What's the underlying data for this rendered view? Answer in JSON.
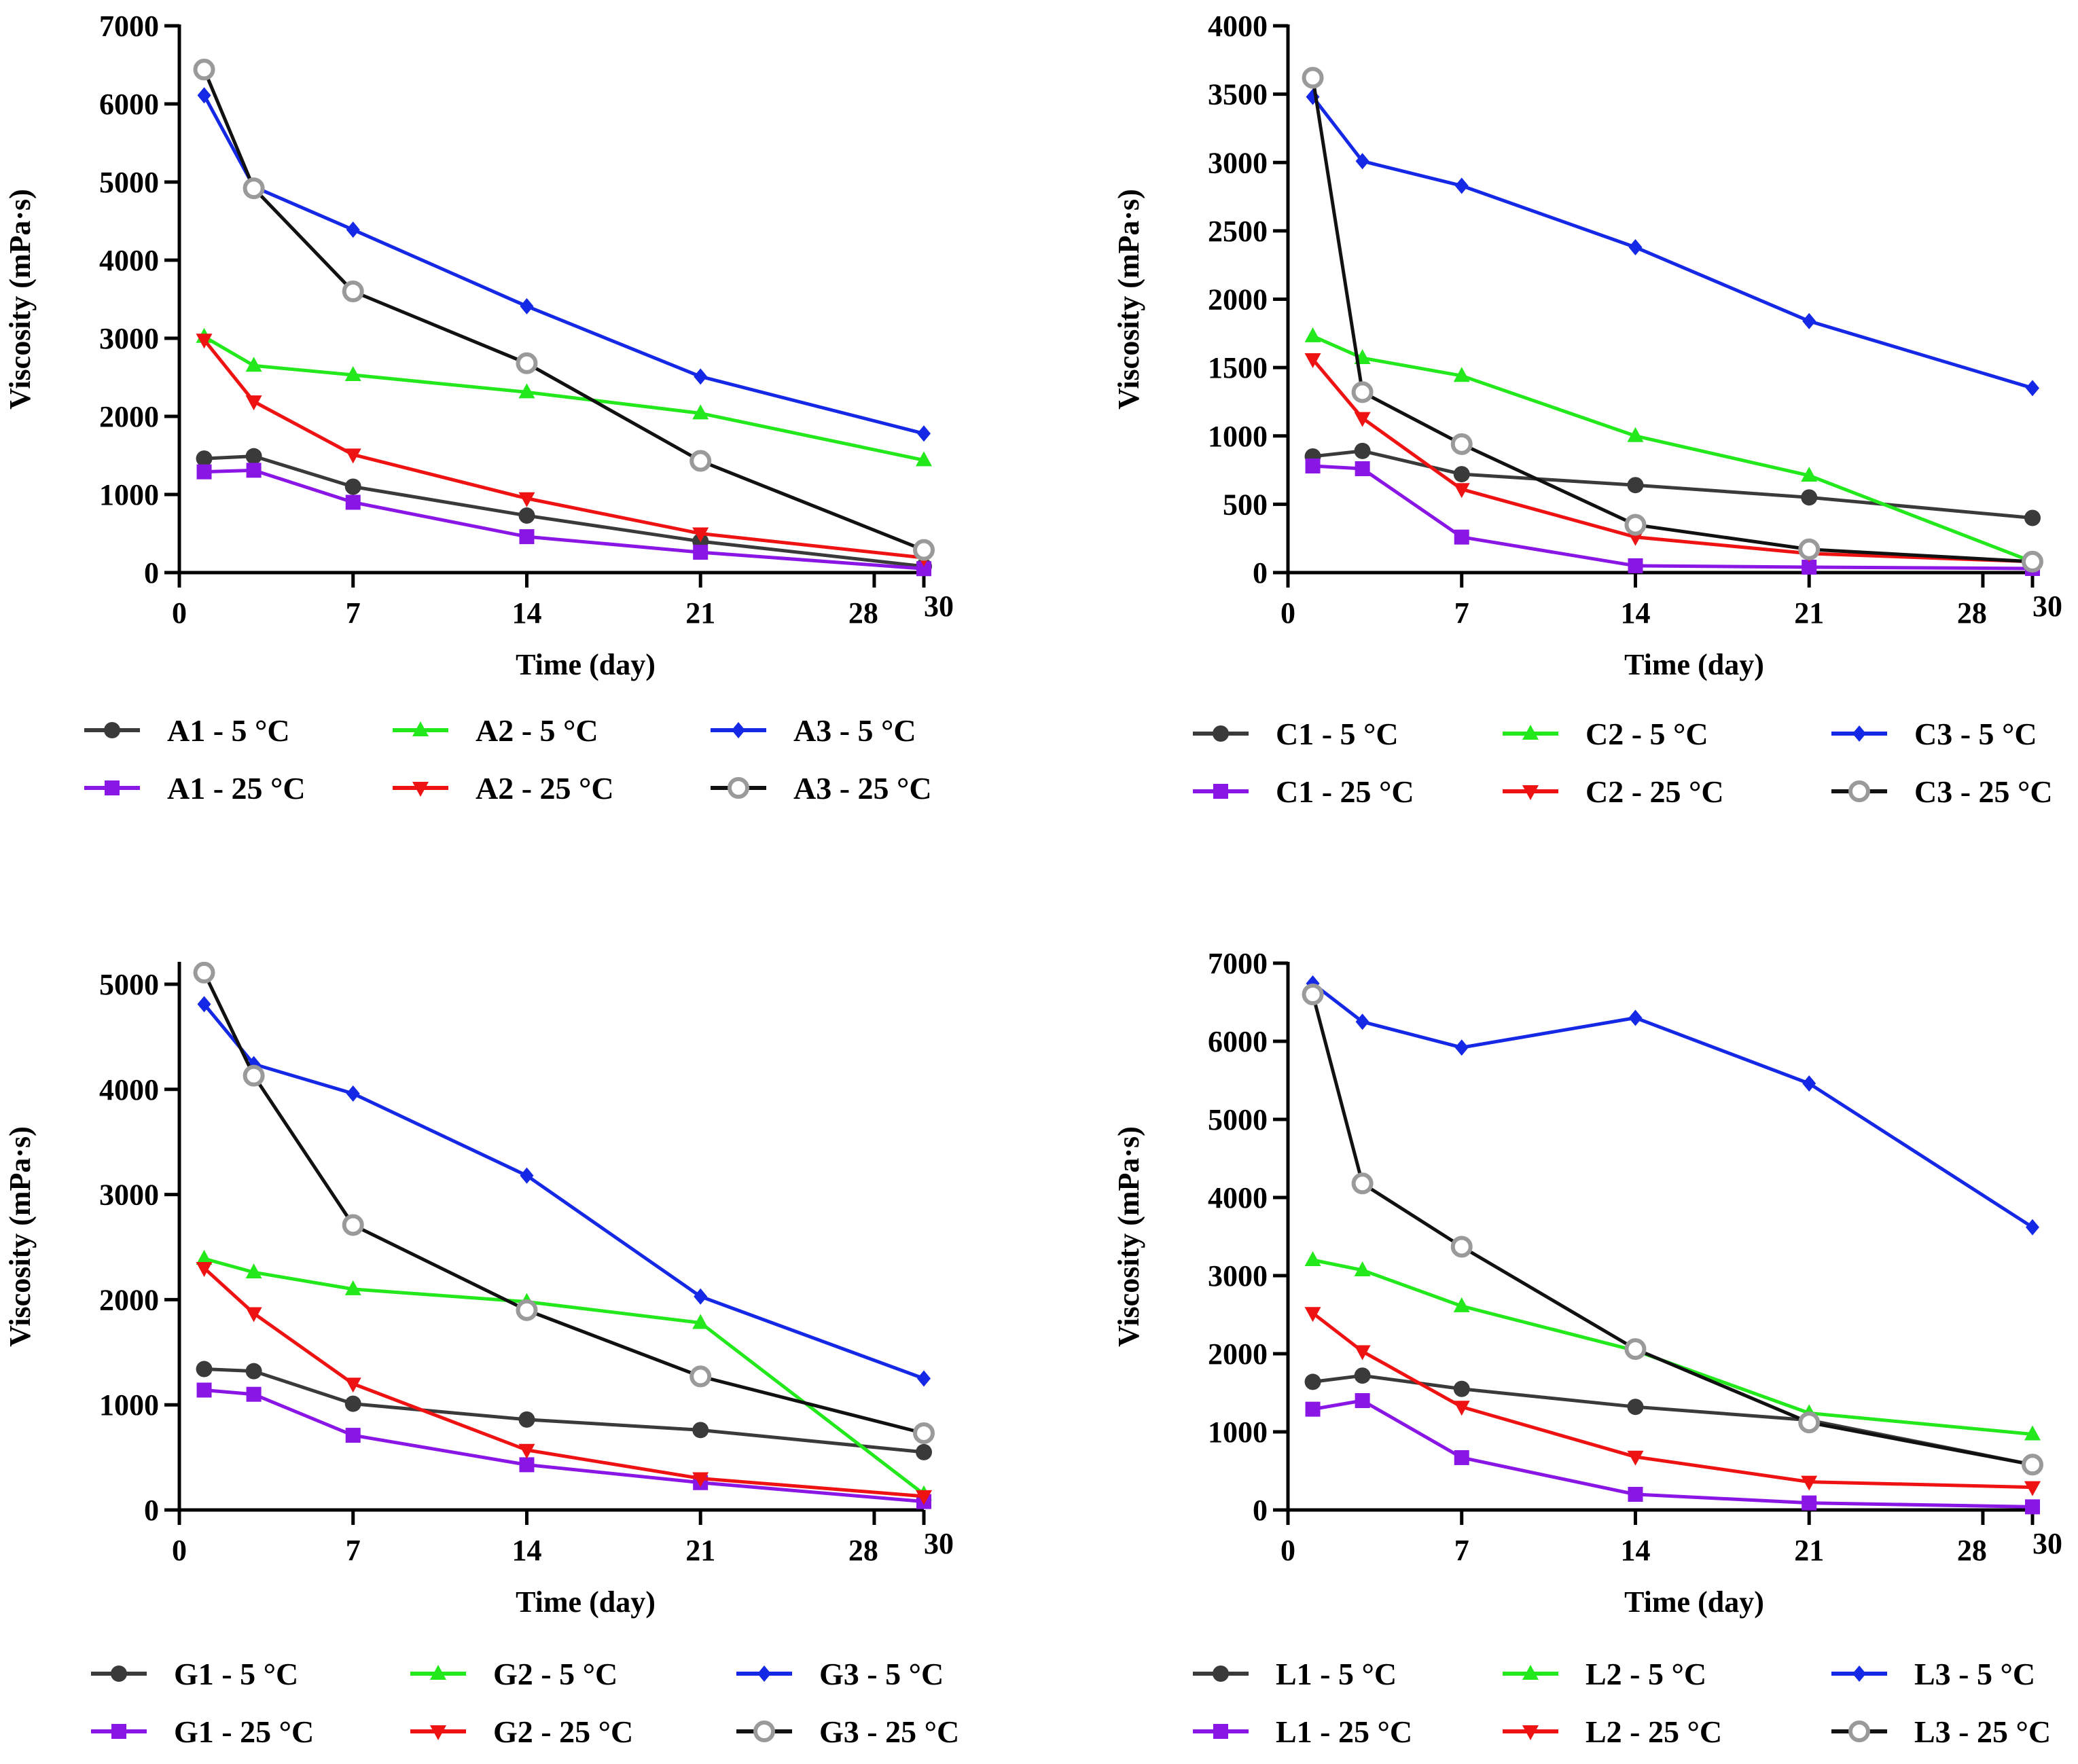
{
  "chart_data": [
    {
      "type": "line",
      "id": "A",
      "xlabel": "Time (day)",
      "ylabel": "Viscosity (mPa·s)",
      "xlim": [
        0,
        30
      ],
      "ylim": [
        0,
        7000
      ],
      "x_ticks": [
        0,
        7,
        14,
        21,
        28,
        30
      ],
      "y_ticks": [
        0,
        1000,
        2000,
        3000,
        4000,
        5000,
        6000,
        7000
      ],
      "x": [
        1,
        3,
        7,
        14,
        21,
        30
      ],
      "series": [
        {
          "name": "A1 - 5 °C",
          "color": "#3a3a3a",
          "marker": "circle",
          "values": [
            1460,
            1490,
            1100,
            730,
            400,
            80
          ]
        },
        {
          "name": "A2 - 5 °C",
          "color": "#22e81c",
          "marker": "triangle-up",
          "values": [
            3020,
            2650,
            2530,
            2310,
            2040,
            1440
          ]
        },
        {
          "name": "A3 - 5 °C",
          "color": "#1428e6",
          "marker": "diamond",
          "values": [
            6110,
            4940,
            4390,
            3410,
            2510,
            1780
          ]
        },
        {
          "name": "A1 - 25 °C",
          "color": "#8a16e6",
          "marker": "square",
          "values": [
            1290,
            1310,
            900,
            460,
            260,
            50
          ]
        },
        {
          "name": "A2 - 25 °C",
          "color": "#ee1212",
          "marker": "triangle-down",
          "values": [
            2980,
            2190,
            1510,
            950,
            500,
            190
          ]
        },
        {
          "name": "A3 - 25 °C",
          "color": "#111111",
          "marker": "open-circle",
          "values": [
            6440,
            4920,
            3600,
            2680,
            1430,
            290
          ]
        }
      ]
    },
    {
      "type": "line",
      "id": "C",
      "xlabel": "Time (day)",
      "ylabel": "Viscosity (mPa·s)",
      "xlim": [
        0,
        30
      ],
      "ylim": [
        0,
        4000
      ],
      "x_ticks": [
        0,
        7,
        14,
        21,
        28,
        30
      ],
      "y_ticks": [
        0,
        500,
        1000,
        1500,
        2000,
        2500,
        3000,
        3500,
        4000
      ],
      "x": [
        1,
        3,
        7,
        14,
        21,
        30
      ],
      "series": [
        {
          "name": "C1 - 5 °C",
          "color": "#3a3a3a",
          "marker": "circle",
          "values": [
            850,
            890,
            720,
            640,
            550,
            400
          ]
        },
        {
          "name": "C2 - 5 °C",
          "color": "#22e81c",
          "marker": "triangle-up",
          "values": [
            1730,
            1570,
            1440,
            1000,
            710,
            80
          ]
        },
        {
          "name": "C3 - 5 °C",
          "color": "#1428e6",
          "marker": "diamond",
          "values": [
            3480,
            3010,
            2830,
            2380,
            1840,
            1350
          ]
        },
        {
          "name": "C1 - 25 °C",
          "color": "#8a16e6",
          "marker": "square",
          "values": [
            780,
            760,
            260,
            50,
            40,
            30
          ]
        },
        {
          "name": "C2 - 25 °C",
          "color": "#ee1212",
          "marker": "triangle-down",
          "values": [
            1560,
            1130,
            610,
            260,
            140,
            80
          ]
        },
        {
          "name": "C3 - 25 °C",
          "color": "#111111",
          "marker": "open-circle",
          "values": [
            3620,
            1320,
            940,
            350,
            170,
            80
          ]
        }
      ]
    },
    {
      "type": "line",
      "id": "G",
      "xlabel": "Time (day)",
      "ylabel": "Viscosity (mPa·s)",
      "xlim": [
        0,
        30
      ],
      "ylim": [
        0,
        5200
      ],
      "x_ticks": [
        0,
        7,
        14,
        21,
        28,
        30
      ],
      "y_ticks": [
        0,
        1000,
        2000,
        3000,
        4000,
        5000
      ],
      "x": [
        1,
        3,
        7,
        14,
        21,
        30
      ],
      "series": [
        {
          "name": "G1 - 5 °C",
          "color": "#3a3a3a",
          "marker": "circle",
          "values": [
            1340,
            1320,
            1010,
            860,
            760,
            550
          ]
        },
        {
          "name": "G2 - 5 °C",
          "color": "#22e81c",
          "marker": "triangle-up",
          "values": [
            2390,
            2260,
            2100,
            1980,
            1780,
            150
          ]
        },
        {
          "name": "G3 - 5 °C",
          "color": "#1428e6",
          "marker": "diamond",
          "values": [
            4810,
            4240,
            3960,
            3180,
            2030,
            1250
          ]
        },
        {
          "name": "G1 - 25 °C",
          "color": "#8a16e6",
          "marker": "square",
          "values": [
            1140,
            1100,
            710,
            430,
            260,
            80
          ]
        },
        {
          "name": "G2 - 25 °C",
          "color": "#ee1212",
          "marker": "triangle-down",
          "values": [
            2300,
            1870,
            1200,
            570,
            300,
            130
          ]
        },
        {
          "name": "G3 - 25 °C",
          "color": "#111111",
          "marker": "open-circle",
          "values": [
            5110,
            4130,
            2710,
            1900,
            1270,
            730
          ]
        }
      ]
    },
    {
      "type": "line",
      "id": "L",
      "xlabel": "Time (day)",
      "ylabel": "Viscosity (mPa·s)",
      "xlim": [
        0,
        30
      ],
      "ylim": [
        0,
        7000
      ],
      "x_ticks": [
        0,
        7,
        14,
        21,
        28,
        30
      ],
      "y_ticks": [
        0,
        1000,
        2000,
        3000,
        4000,
        5000,
        6000,
        7000
      ],
      "x": [
        1,
        3,
        7,
        14,
        21,
        30
      ],
      "series": [
        {
          "name": "L1 - 5 °C",
          "color": "#3a3a3a",
          "marker": "circle",
          "values": [
            1640,
            1720,
            1550,
            1320,
            1150,
            580
          ]
        },
        {
          "name": "L2 - 5 °C",
          "color": "#22e81c",
          "marker": "triangle-up",
          "values": [
            3200,
            3070,
            2610,
            2040,
            1240,
            970
          ]
        },
        {
          "name": "L3 - 5 °C",
          "color": "#1428e6",
          "marker": "diamond",
          "values": [
            6740,
            6250,
            5920,
            6300,
            5460,
            3620
          ]
        },
        {
          "name": "L1 - 25 °C",
          "color": "#8a16e6",
          "marker": "square",
          "values": [
            1290,
            1400,
            670,
            200,
            90,
            40
          ]
        },
        {
          "name": "L2 - 25 °C",
          "color": "#ee1212",
          "marker": "triangle-down",
          "values": [
            2520,
            2030,
            1320,
            680,
            360,
            290
          ]
        },
        {
          "name": "L3 - 25 °C",
          "color": "#111111",
          "marker": "open-circle",
          "values": [
            6600,
            4180,
            3370,
            2060,
            1120,
            580
          ]
        }
      ]
    }
  ]
}
